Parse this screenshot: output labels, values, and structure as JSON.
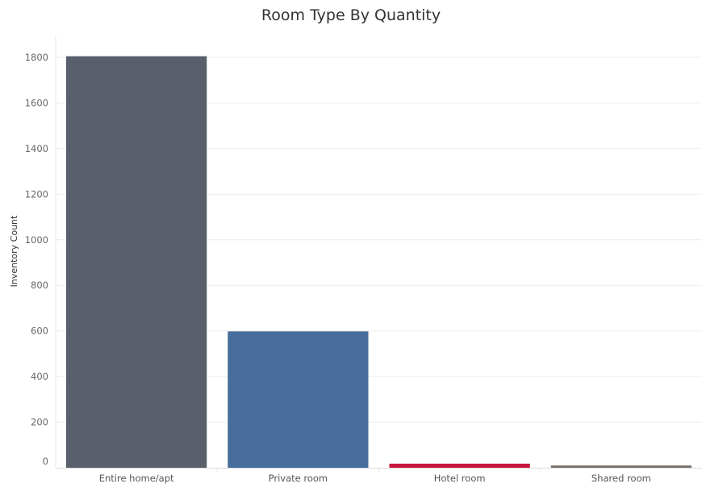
{
  "chart_data": {
    "type": "bar",
    "title": "Room Type By Quantity",
    "xlabel": "",
    "ylabel": "Inventory Count",
    "categories": [
      "Entire home/apt",
      "Private room",
      "Hotel room",
      "Shared room"
    ],
    "values": [
      1805,
      598,
      18,
      10
    ],
    "colors": [
      "#59606b",
      "#466d9b",
      "#c8173f",
      "#7b6f69"
    ],
    "ylim": [
      0,
      1850
    ],
    "yticks": [
      0,
      200,
      400,
      600,
      800,
      1000,
      1200,
      1400,
      1600,
      1800
    ],
    "grid": true,
    "legend": "none"
  }
}
